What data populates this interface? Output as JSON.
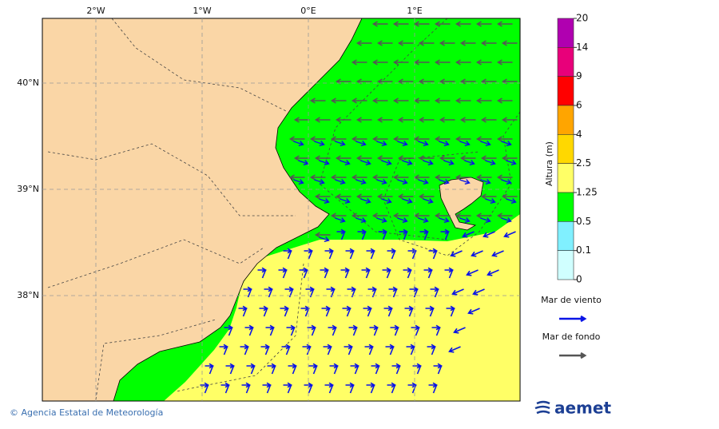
{
  "map": {
    "lon_labels": [
      "2°W",
      "1°W",
      "0°E",
      "1°E"
    ],
    "lat_labels": [
      "40°N",
      "39°N",
      "38°N"
    ]
  },
  "colorbar": {
    "title": "Altura (m)",
    "levels": [
      20,
      14,
      9,
      6,
      4,
      2.5,
      1.25,
      0.5,
      0.1,
      0
    ],
    "colors": [
      "#b000b0",
      "#e8007a",
      "#ff0000",
      "#ffa500",
      "#ffd800",
      "#ffff66",
      "#00ff00",
      "#80f0ff",
      "#d0ffff"
    ]
  },
  "legend": [
    {
      "label": "Mar de viento",
      "color": "#0a14e6"
    },
    {
      "label": "Mar de fondo",
      "color": "#555555"
    }
  ],
  "footer": {
    "credit": "© Agencia Estatal de Meteorología",
    "logo": "aemet"
  }
}
